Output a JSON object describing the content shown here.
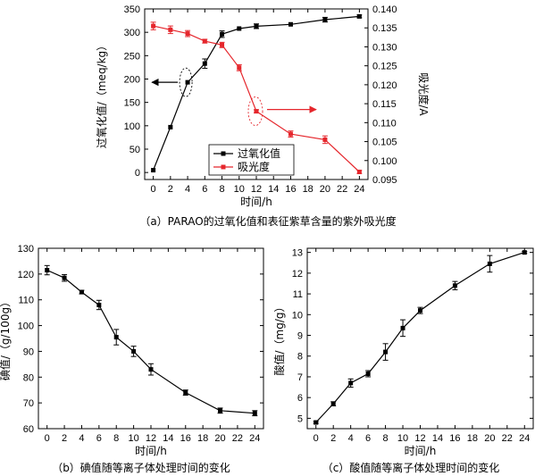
{
  "colors": {
    "peroxide": "#000000",
    "absorbance": "#e5262c",
    "annotation": "#e5262c"
  },
  "chart_data": [
    {
      "type": "line",
      "caption": "（a）PARAO的过氧化值和表征紫草含量的紫外吸光度",
      "xlabel": "时间/h",
      "ylabel": "过氧化值/（meq/kg）",
      "ylabel_right": "吸光度/A",
      "x": [
        0,
        2,
        4,
        6,
        8,
        10,
        12,
        16,
        20,
        24
      ],
      "xlim": [
        -1,
        25
      ],
      "xticks": [
        0,
        2,
        4,
        6,
        8,
        10,
        12,
        14,
        16,
        18,
        20,
        22,
        24
      ],
      "ylim": [
        -15,
        350
      ],
      "yticks": [
        0,
        50,
        100,
        150,
        200,
        250,
        300,
        350
      ],
      "ylim_right": [
        0.095,
        0.14
      ],
      "yticks_right": [
        "0.095",
        "0.100",
        "0.105",
        "0.110",
        "0.115",
        "0.120",
        "0.125",
        "0.130",
        "0.135",
        "0.140"
      ],
      "series": [
        {
          "name": "过氧化值",
          "axis": "left",
          "values": [
            5,
            97,
            193,
            233,
            296,
            308,
            313,
            317,
            327,
            334
          ],
          "errors": [
            0,
            0,
            0,
            10,
            7,
            0,
            5,
            0,
            5,
            3
          ]
        },
        {
          "name": "吸光度",
          "axis": "right",
          "values": [
            0.1355,
            0.1345,
            0.1335,
            0.1315,
            0.1305,
            0.1245,
            0.113,
            0.107,
            0.1055,
            0.097
          ],
          "errors": [
            0.001,
            0.001,
            0.0008,
            0.0005,
            0.0007,
            0.0008,
            0.0004,
            0.0008,
            0.001,
            0.0004
          ]
        }
      ],
      "legend_position": "bottom-center"
    },
    {
      "type": "line",
      "caption": "（b）碘值随等离子体处理时间的变化",
      "xlabel": "时间/h",
      "ylabel": "碘值/（g/100g）",
      "x": [
        0,
        2,
        4,
        6,
        8,
        10,
        12,
        16,
        20,
        24
      ],
      "xlim": [
        -1,
        25
      ],
      "xticks": [
        0,
        2,
        4,
        6,
        8,
        10,
        12,
        14,
        16,
        18,
        20,
        22,
        24
      ],
      "ylim": [
        60,
        130
      ],
      "yticks": [
        60,
        70,
        80,
        90,
        100,
        110,
        120,
        130
      ],
      "series": [
        {
          "values": [
            121.5,
            118.5,
            113,
            108,
            95.5,
            90,
            83,
            74,
            67,
            66
          ],
          "errors": [
            1.8,
            1.3,
            0.7,
            1.8,
            3,
            2,
            2.2,
            1,
            1,
            1
          ]
        }
      ]
    },
    {
      "type": "line",
      "caption": "（c）酸值随等离子体处理时间的变化",
      "xlabel": "时间/h",
      "ylabel": "酸值/（mg/g）",
      "x": [
        0,
        2,
        4,
        6,
        8,
        10,
        12,
        16,
        20,
        24
      ],
      "xlim": [
        -1,
        25
      ],
      "xticks": [
        0,
        2,
        4,
        6,
        8,
        10,
        12,
        14,
        16,
        18,
        20,
        22,
        24
      ],
      "ylim": [
        4.5,
        13.2
      ],
      "yticks": [
        5,
        6,
        7,
        8,
        9,
        10,
        11,
        12,
        13
      ],
      "series": [
        {
          "values": [
            4.8,
            5.7,
            6.7,
            7.15,
            8.2,
            9.35,
            10.2,
            11.4,
            12.45,
            13.0
          ],
          "errors": [
            0.05,
            0.1,
            0.2,
            0.15,
            0.4,
            0.4,
            0.15,
            0.2,
            0.4,
            0.05
          ]
        }
      ]
    }
  ]
}
